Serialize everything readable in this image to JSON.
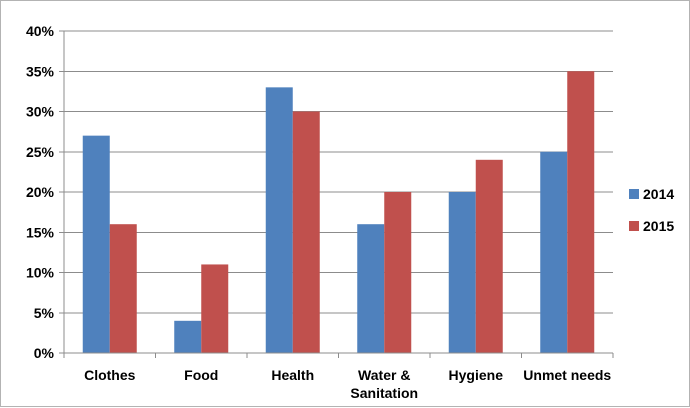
{
  "chart_data": {
    "type": "bar",
    "title": "",
    "xlabel": "",
    "ylabel": "",
    "categories": [
      [
        "Clothes"
      ],
      [
        "Food"
      ],
      [
        "Health"
      ],
      [
        "Water &",
        "Sanitation"
      ],
      [
        "Hygiene"
      ],
      [
        "Unmet needs"
      ]
    ],
    "series": [
      {
        "name": "2014",
        "color": "#4f81bd",
        "values": [
          27,
          4,
          33,
          16,
          20,
          25
        ]
      },
      {
        "name": "2015",
        "color": "#c0504d",
        "values": [
          16,
          11,
          30,
          20,
          24,
          35
        ]
      }
    ],
    "ylim": [
      0,
      40
    ],
    "yticks": [
      0,
      5,
      10,
      15,
      20,
      25,
      30,
      35,
      40
    ],
    "ytick_labels": [
      "0%",
      "5%",
      "10%",
      "15%",
      "20%",
      "25%",
      "30%",
      "35%",
      "40%"
    ],
    "grid": true,
    "legend_position": "right"
  }
}
